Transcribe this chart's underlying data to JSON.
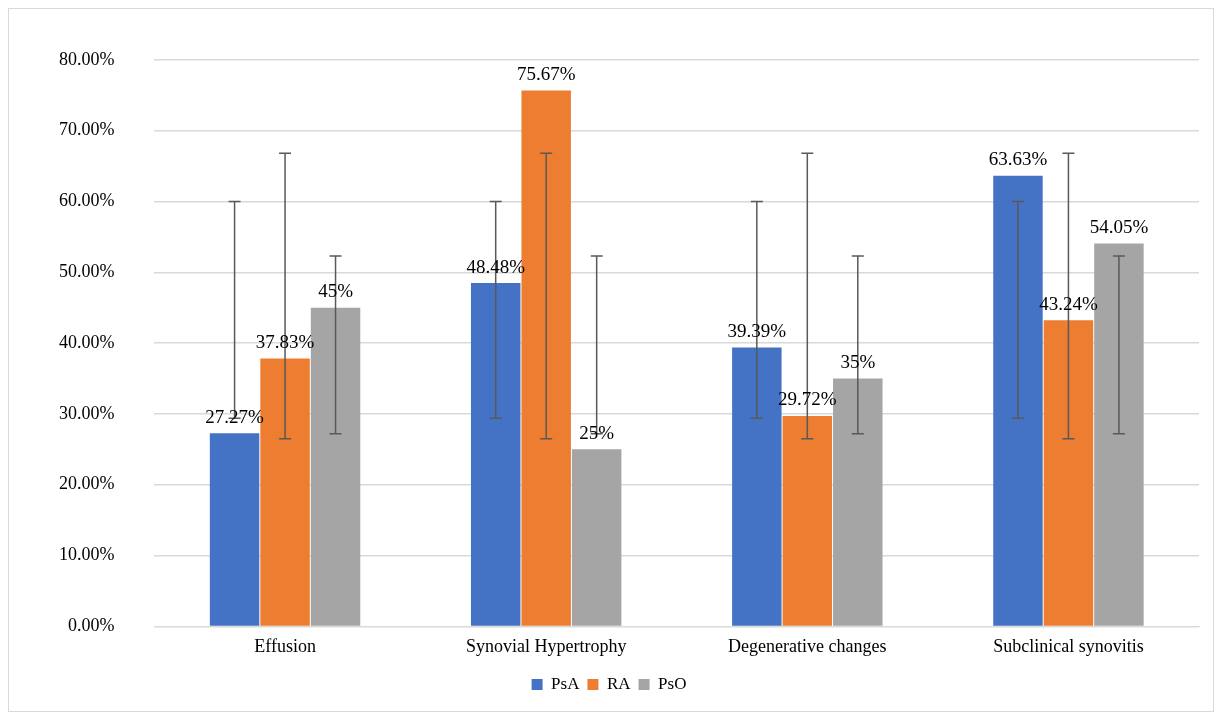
{
  "chart_data": {
    "type": "bar",
    "categories": [
      "Effusion",
      "Synovial Hypertrophy",
      "Degenerative changes",
      "Subclinical synovitis"
    ],
    "series": [
      {
        "name": "PsA",
        "color": "#4472c4",
        "values": [
          27.27,
          48.48,
          39.39,
          63.63
        ],
        "value_labels": [
          "27.27%",
          "48.48%",
          "39.39%",
          "63.63%"
        ],
        "errors": [
          [
            29.4,
            60
          ],
          [
            29.4,
            60
          ],
          [
            29.4,
            60
          ],
          [
            29.4,
            60
          ]
        ]
      },
      {
        "name": "RA",
        "color": "#ed7d31",
        "values": [
          37.83,
          75.67,
          29.72,
          43.24
        ],
        "value_labels": [
          "37.83%",
          "75.67%",
          "29.72%",
          "43.24%"
        ],
        "errors": [
          [
            26.5,
            66.8
          ],
          [
            26.5,
            66.8
          ],
          [
            26.5,
            66.8
          ],
          [
            26.5,
            66.8
          ]
        ]
      },
      {
        "name": "PsO",
        "color": "#a5a5a5",
        "values": [
          45,
          25,
          35,
          54.05
        ],
        "value_labels": [
          "45%",
          "25%",
          "35%",
          "54.05%"
        ],
        "errors": [
          [
            27.2,
            52.3
          ],
          [
            27.2,
            52.3
          ],
          [
            27.2,
            52.3
          ],
          [
            27.2,
            52.3
          ]
        ]
      }
    ],
    "ylim": [
      0,
      80
    ],
    "yticks": [
      {
        "value": 0,
        "label": "0.00%"
      },
      {
        "value": 10,
        "label": "10.00%"
      },
      {
        "value": 20,
        "label": "20.00%"
      },
      {
        "value": 30,
        "label": "30.00%"
      },
      {
        "value": 40,
        "label": "40.00%"
      },
      {
        "value": 50,
        "label": "50.00%"
      },
      {
        "value": 60,
        "label": "60.00%"
      },
      {
        "value": 70,
        "label": "70.00%"
      },
      {
        "value": 80,
        "label": "80.00%"
      }
    ],
    "grid": "y",
    "legend": "bottom"
  }
}
